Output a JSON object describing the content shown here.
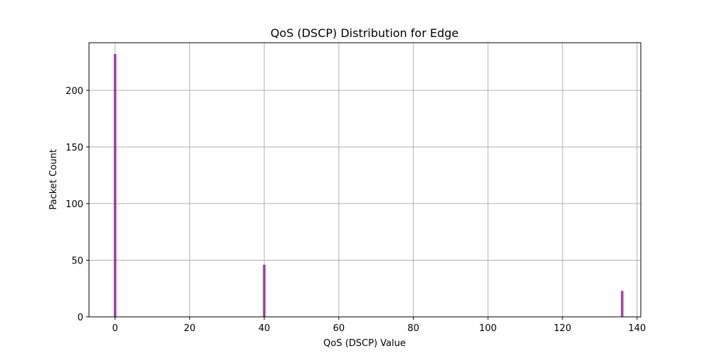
{
  "chart_data": {
    "type": "bar",
    "title": "QoS (DSCP) Distribution for Edge",
    "xlabel": "QoS (DSCP) Value",
    "ylabel": "Packet Count",
    "xlim": [
      -7,
      141
    ],
    "ylim": [
      0,
      242
    ],
    "xticks": [
      0,
      20,
      40,
      60,
      80,
      100,
      120,
      140
    ],
    "yticks": [
      0,
      50,
      100,
      150,
      200
    ],
    "grid": true,
    "bar_color": "#800080",
    "bar_width": 0.7,
    "points": [
      {
        "x": 0,
        "y": 232
      },
      {
        "x": 40,
        "y": 46
      },
      {
        "x": 136,
        "y": 23
      }
    ]
  }
}
